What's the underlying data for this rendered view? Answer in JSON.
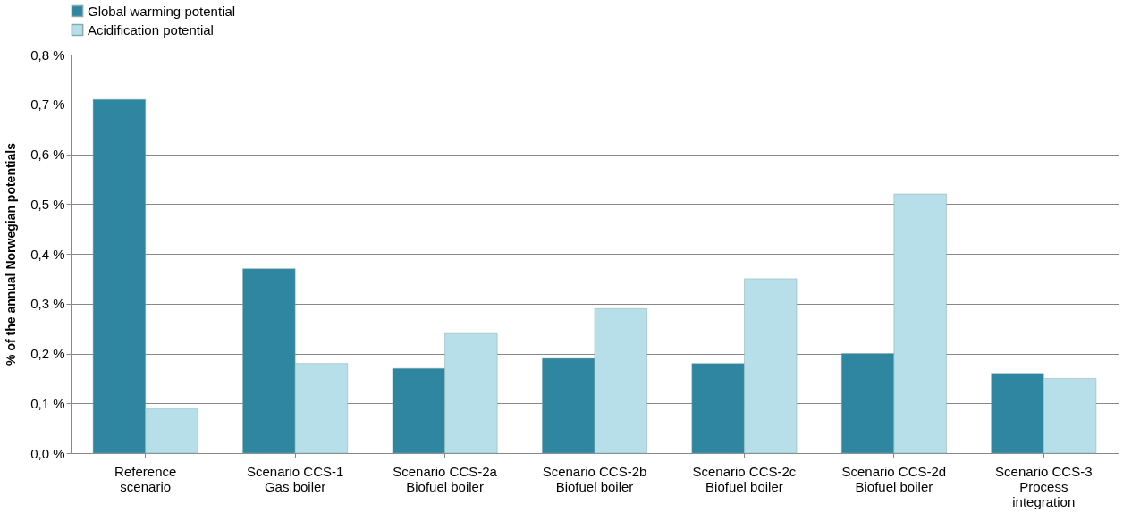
{
  "chart_data": {
    "type": "bar",
    "ylabel": "% of the annual  Norwegian potentials",
    "categories": [
      "Reference\nscenario",
      "Scenario CCS-1\nGas boiler",
      "Scenario CCS-2a\nBiofuel boiler",
      "Scenario CCS-2b\nBiofuel boiler",
      "Scenario CCS-2c\nBiofuel boiler",
      "Scenario CCS-2d\nBiofuel boiler",
      "Scenario CCS-3\nProcess\nintegration"
    ],
    "series": [
      {
        "name": "Global warming  potential",
        "color": "#2e86a0",
        "values": [
          0.71,
          0.37,
          0.17,
          0.19,
          0.18,
          0.2,
          0.16
        ]
      },
      {
        "name": "Acidification potential",
        "color": "#b7dfe9",
        "values": [
          0.09,
          0.18,
          0.24,
          0.29,
          0.35,
          0.52,
          0.15
        ]
      }
    ],
    "ylim": [
      0,
      0.8
    ],
    "yticks": [
      {
        "value": 0,
        "label": "0,0 %"
      },
      {
        "value": 0.1,
        "label": "0,1 %"
      },
      {
        "value": 0.2,
        "label": "0,2 %"
      },
      {
        "value": 0.3,
        "label": "0,3 %"
      },
      {
        "value": 0.4,
        "label": "0,4 %"
      },
      {
        "value": 0.5,
        "label": "0,5 %"
      },
      {
        "value": 0.6,
        "label": "0,6 %"
      },
      {
        "value": 0.7,
        "label": "0,7 %"
      },
      {
        "value": 0.8,
        "label": "0,8 %"
      }
    ],
    "grid": "y",
    "legend": "top"
  }
}
